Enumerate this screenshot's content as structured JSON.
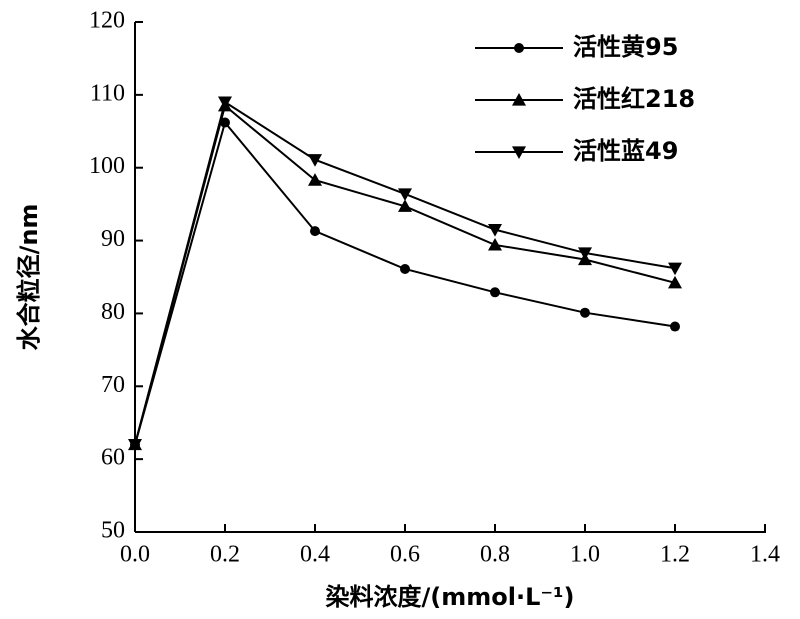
{
  "chart_data": {
    "type": "line",
    "x_label": "染料浓度/(mmol·L⁻¹)",
    "y_label": "水合粒径/nm",
    "x": [
      0,
      0.2,
      0.4,
      0.6,
      0.8,
      1.0,
      1.2
    ],
    "series": [
      {
        "name": "活性黄95",
        "color": "#000000",
        "marker": "circle",
        "values": [
          62,
          106.2,
          91.3,
          86.1,
          82.9,
          80.1,
          78.2
        ]
      },
      {
        "name": "活性红218",
        "color": "#000000",
        "marker": "triangle-up",
        "values": [
          62,
          108.5,
          98.3,
          94.7,
          89.4,
          87.4,
          84.2
        ]
      },
      {
        "name": "活性蓝49",
        "color": "#000000",
        "marker": "triangle-down",
        "values": [
          62,
          109,
          101.1,
          96.4,
          91.5,
          88.3,
          86.2
        ]
      }
    ],
    "xlim": [
      0,
      1.4
    ],
    "xticks": [
      {
        "value": 0,
        "label": "0.0"
      },
      0.2,
      0.4,
      0.6,
      0.8,
      {
        "value": 1,
        "label": "1.0"
      },
      1.2,
      1.4
    ],
    "ylim": [
      50,
      120
    ],
    "yticks": [
      50,
      60,
      70,
      80,
      90,
      100,
      110,
      120
    ],
    "legend": "top-right"
  }
}
